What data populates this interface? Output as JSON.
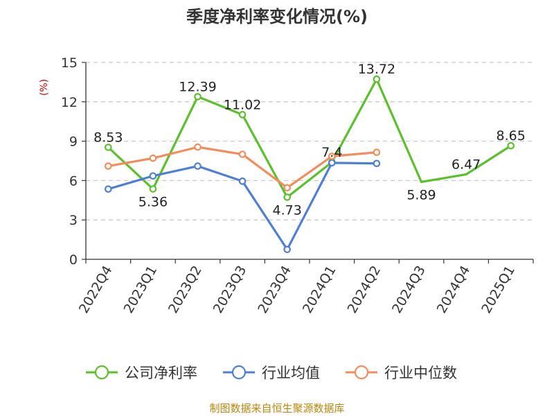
{
  "chart_data": {
    "type": "line",
    "title": "季度净利率变化情况(%)",
    "ylabel": "(%)",
    "categories": [
      "2022Q4",
      "2023Q1",
      "2023Q2",
      "2023Q3",
      "2023Q4",
      "2024Q1",
      "2024Q2",
      "2024Q3",
      "2024Q4",
      "2025Q1"
    ],
    "ylim": [
      0,
      15
    ],
    "yticks": [
      0,
      3,
      6,
      9,
      12,
      15
    ],
    "grid": true,
    "legend_position": "bottom",
    "series": [
      {
        "name": "公司净利率",
        "color": "#5ac02b",
        "values": [
          8.53,
          5.36,
          12.39,
          11.02,
          4.73,
          7.4,
          13.72,
          5.89,
          6.47,
          8.65
        ],
        "labels": [
          "8.53",
          "5.36",
          "12.39",
          "11.02",
          "4.73",
          "7.4",
          "13.72",
          "5.89",
          "6.47",
          "8.65"
        ],
        "markers": [
          true,
          true,
          true,
          true,
          true,
          true,
          true,
          false,
          false,
          true
        ]
      },
      {
        "name": "行业均值",
        "color": "#4e7fd6",
        "values": [
          5.35,
          6.35,
          7.1,
          5.95,
          0.75,
          7.35,
          7.3,
          null,
          null,
          null
        ]
      },
      {
        "name": "行业中位数",
        "color": "#f28c5a",
        "values": [
          7.1,
          7.7,
          8.55,
          8.0,
          5.45,
          7.85,
          8.15,
          null,
          null,
          null
        ]
      }
    ]
  },
  "footer": {
    "source": "制图数据来自恒生聚源数据库"
  }
}
